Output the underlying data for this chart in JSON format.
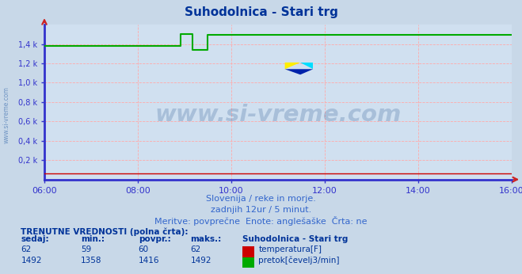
{
  "title": "Suhodolnica - Stari trg",
  "title_color": "#003399",
  "fig_bg_color": "#c8d8e8",
  "plot_bg_color": "#d0e0f0",
  "grid_color": "#ffaaaa",
  "axis_color_x": "#3333cc",
  "axis_color_y": "#cc0000",
  "tick_label_color": "#3366cc",
  "watermark_text": "www.si-vreme.com",
  "watermark_color": "#1a4a8a",
  "watermark_alpha": 0.22,
  "sub_text1": "Slovenija / reke in morje.",
  "sub_text2": "zadnjih 12ur / 5 minut.",
  "sub_text3": "Meritve: povprečne  Enote: anglešaške  Črta: ne",
  "sub_color": "#3366cc",
  "xmin": 0,
  "xmax": 120,
  "ymin": 0,
  "ymax": 1600,
  "yticks": [
    200,
    400,
    600,
    800,
    1000,
    1200,
    1400
  ],
  "ytick_labels": [
    "0,2 k",
    "0,4 k",
    "0,6 k",
    "0,8 k",
    "1,0 k",
    "1,2 k",
    "1,4 k"
  ],
  "xticks": [
    0,
    24,
    48,
    72,
    96,
    120
  ],
  "xtick_labels": [
    "06:00",
    "08:00",
    "10:00",
    "12:00",
    "14:00",
    "16:00"
  ],
  "temp_color": "#cc0000",
  "flow_color": "#00aa00",
  "temp_value": 62,
  "flow_x": [
    0,
    35,
    35,
    38,
    38,
    42,
    42,
    48,
    48,
    120
  ],
  "flow_y": [
    1380,
    1380,
    1500,
    1500,
    1340,
    1340,
    1492,
    1492,
    1492,
    1492
  ],
  "table_title": "TRENUTNE VREDNOSTI (polna črta):",
  "table_col1": "sedaj:",
  "table_col2": "min.:",
  "table_col3": "povpr.:",
  "table_col4": "maks.:",
  "table_col5": "Suhodolnica - Stari trg",
  "temp_sedaj": "62",
  "temp_min": "59",
  "temp_povpr": "60",
  "temp_maks": "62",
  "flow_sedaj": "1492",
  "flow_min": "1358",
  "flow_povpr": "1416",
  "flow_maks": "1492",
  "temp_label": "temperatura[F]",
  "flow_label": "pretok[čevelj3/min]",
  "table_color": "#003399",
  "figwidth": 6.59,
  "figheight": 3.46,
  "dpi": 100
}
